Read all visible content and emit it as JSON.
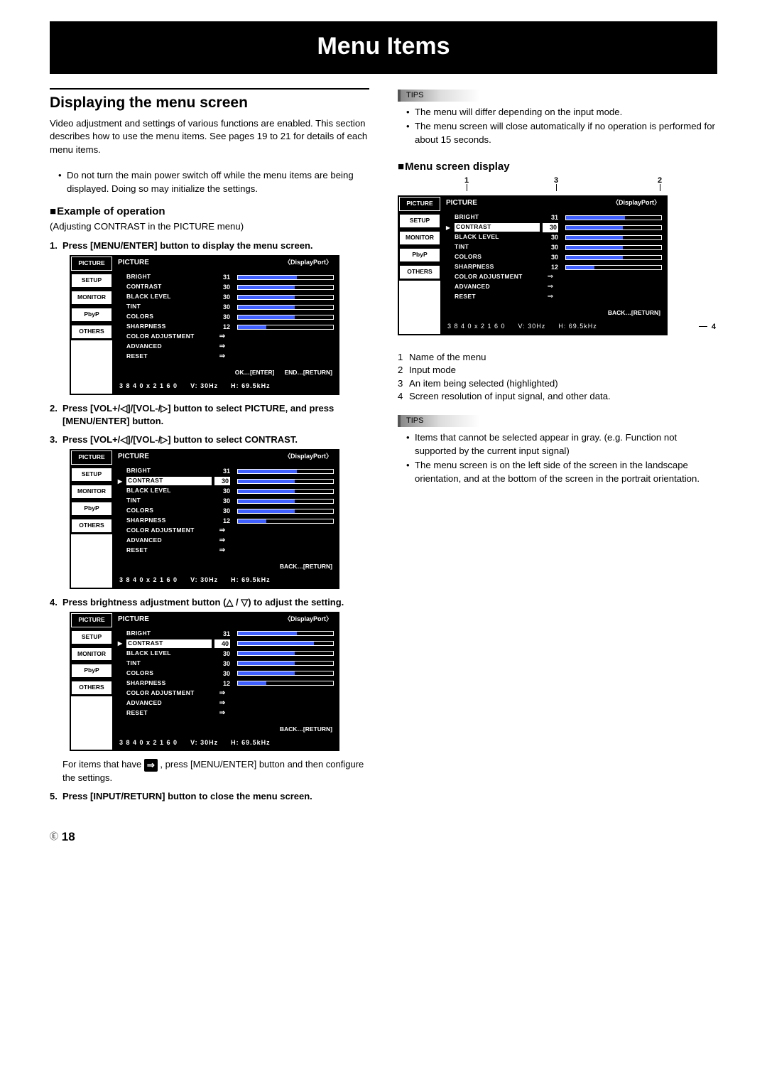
{
  "page_title": "Menu Items",
  "left": {
    "section_title": "Displaying the menu screen",
    "intro": "Video adjustment and settings of various functions are enabled. This section describes how to use the menu items. See pages 19 to 21 for details of each menu items.",
    "caution_items": [
      "Do not turn the main power switch off while the menu items are being displayed. Doing so may initialize the settings."
    ],
    "sub_heading": "Example of operation",
    "sub_paren": "(Adjusting CONTRAST in the PICTURE menu)",
    "steps": {
      "s1": "Press [MENU/ENTER] button to display the menu screen.",
      "s2": "Press [VOL+/◁]/[VOL-/▷] button to select PICTURE, and press [MENU/ENTER] button.",
      "s3": "Press [VOL+/◁]/[VOL-/▷] button to select CONTRAST.",
      "s4": "Press brightness adjustment button (△ / ▽) to adjust the setting.",
      "s4_note_a": "For items that have ",
      "s4_note_b": " , press [MENU/ENTER] button and then configure the settings.",
      "s5": "Press [INPUT/RETURN] button to close the menu screen."
    }
  },
  "right": {
    "tips1": [
      "The menu will differ depending on the input mode.",
      "The menu screen will close automatically if no operation is performed for about 15 seconds."
    ],
    "sub_heading": "Menu screen display",
    "legend": [
      "Name of the menu",
      "Input mode",
      "An item being selected (highlighted)",
      "Screen resolution of input signal, and other data."
    ],
    "tips2": [
      "Items that cannot be selected appear in gray. (e.g. Function not supported by the current input signal)",
      "The menu screen is on the left side of the screen in the landscape orientation, and at the bottom of the screen in the portrait orientation."
    ]
  },
  "menu": {
    "tabs": [
      "PICTURE",
      "SETUP",
      "MONITOR",
      "PbyP",
      "OTHERS"
    ],
    "title": "PICTURE",
    "input_mode": "〈DisplayPort〉",
    "rows_numeric": [
      {
        "label": "BRIGHT",
        "val": "31",
        "pct": 62
      },
      {
        "label": "CONTRAST",
        "val": "30",
        "pct": 60
      },
      {
        "label": "BLACK LEVEL",
        "val": "30",
        "pct": 60
      },
      {
        "label": "TINT",
        "val": "30",
        "pct": 60
      },
      {
        "label": "COLORS",
        "val": "30",
        "pct": 60
      },
      {
        "label": "SHARPNESS",
        "val": "12",
        "pct": 30
      }
    ],
    "rows_sub": [
      "COLOR ADJUSTMENT",
      "ADVANCED",
      "RESET"
    ],
    "footer_ok": "OK…[ENTER]",
    "footer_end": "END…[RETURN]",
    "footer_back": "BACK…[RETURN]",
    "res": "3 8 4 0 x 2 1 6 0",
    "vhz": "V: 30Hz",
    "hkhz": "H: 69.5kHz",
    "contrast_40": "40"
  },
  "page_number": "18",
  "page_e": "E"
}
